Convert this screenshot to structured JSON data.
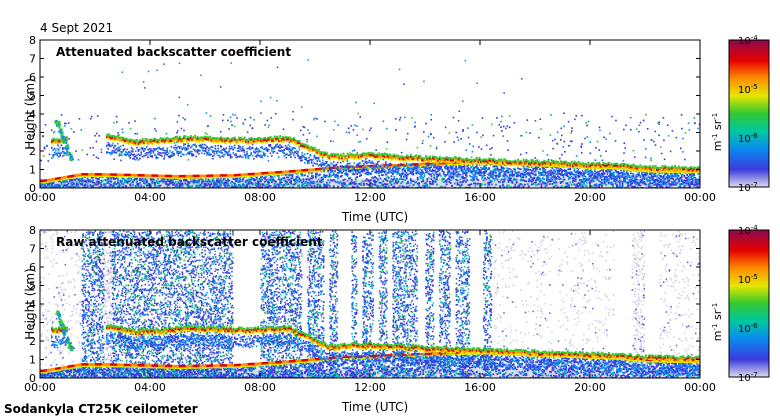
{
  "header": {
    "date": "4 Sept 2021"
  },
  "footer": {
    "station": "Sodankyla CT25K ceilometer"
  },
  "chart_data": [
    {
      "type": "heatmap",
      "title": "Attenuated backscatter coefficient",
      "xlabel": "Time (UTC)",
      "ylabel": "Height (km)",
      "x_ticks": [
        "00:00",
        "04:00",
        "08:00",
        "12:00",
        "16:00",
        "20:00",
        "00:00"
      ],
      "x_range_hours": [
        0,
        24
      ],
      "y_ticks": [
        0,
        1,
        2,
        3,
        4,
        5,
        6,
        7,
        8
      ],
      "y_range_km": [
        0,
        8
      ],
      "grid": false,
      "colorbar": {
        "scale": "log",
        "range": [
          1e-07,
          0.0001
        ],
        "tick_labels": [
          {
            "base": "10",
            "exp": "-4"
          },
          {
            "base": "10",
            "exp": "-5"
          },
          {
            "base": "10",
            "exp": "-6"
          },
          {
            "base": "10",
            "exp": "-7"
          }
        ],
        "unit": {
          "a": "m",
          "a_exp": "-1",
          "b": "sr",
          "b_exp": "-1"
        },
        "colormap": [
          "#dcdcf0",
          "#3a3adc",
          "#0a8cf0",
          "#00c8a0",
          "#32c832",
          "#e6e600",
          "#ff8c00",
          "#e60000",
          "#8b0a50"
        ]
      },
      "features": {
        "boundary_layer_km": [
          [
            0.1,
            0.4
          ],
          [
            1.5,
            0.75
          ],
          [
            2.3,
            0.75
          ],
          [
            5.0,
            0.65
          ],
          [
            7.0,
            0.7
          ],
          [
            9.0,
            0.9
          ],
          [
            11.0,
            1.15
          ],
          [
            13.0,
            1.25
          ],
          [
            16.0,
            1.45
          ],
          [
            18.5,
            1.3
          ],
          [
            20.0,
            1.2
          ],
          [
            21.0,
            1.15
          ],
          [
            22.0,
            1.0
          ],
          [
            24.0,
            0.95
          ]
        ],
        "cloud_layer_km": [
          [
            0.5,
            2.6
          ],
          [
            2.5,
            2.8
          ],
          [
            3.5,
            2.5
          ],
          [
            5.5,
            2.7
          ],
          [
            7.5,
            2.6
          ],
          [
            9.0,
            2.7
          ],
          [
            10.5,
            1.7
          ],
          [
            12.0,
            1.8
          ],
          [
            14.0,
            1.6
          ],
          [
            16.0,
            1.5
          ],
          [
            18.5,
            1.35
          ],
          [
            20.5,
            1.25
          ],
          [
            22.0,
            1.1
          ],
          [
            24.0,
            1.05
          ]
        ]
      }
    },
    {
      "type": "heatmap",
      "title": "Raw attenuated backscatter coefficient",
      "xlabel": "Time (UTC)",
      "ylabel": "Height (km)",
      "x_ticks": [
        "00:00",
        "04:00",
        "08:00",
        "12:00",
        "16:00",
        "20:00",
        "00:00"
      ],
      "x_range_hours": [
        0,
        24
      ],
      "y_ticks": [
        0,
        1,
        2,
        3,
        4,
        5,
        6,
        7,
        8
      ],
      "y_range_km": [
        0,
        8
      ],
      "grid": false,
      "colorbar": {
        "scale": "log",
        "range": [
          1e-07,
          0.0001
        ],
        "tick_labels": [
          {
            "base": "10",
            "exp": "-4"
          },
          {
            "base": "10",
            "exp": "-5"
          },
          {
            "base": "10",
            "exp": "-6"
          },
          {
            "base": "10",
            "exp": "-7"
          }
        ],
        "unit": {
          "a": "m",
          "a_exp": "-1",
          "b": "sr",
          "b_exp": "-1"
        },
        "colormap": [
          "#dcdcf0",
          "#3a3adc",
          "#0a8cf0",
          "#00c8a0",
          "#32c832",
          "#e6e600",
          "#ff8c00",
          "#e60000",
          "#8b0a50"
        ]
      }
    }
  ]
}
